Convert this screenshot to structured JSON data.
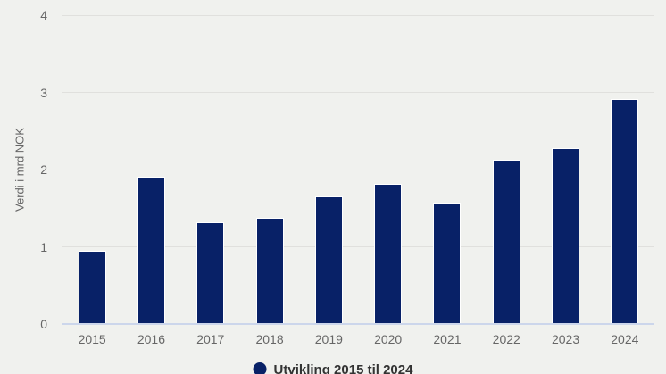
{
  "chart_data": {
    "type": "bar",
    "categories": [
      "2015",
      "2016",
      "2017",
      "2018",
      "2019",
      "2020",
      "2021",
      "2022",
      "2023",
      "2024"
    ],
    "values": [
      0.95,
      1.91,
      1.32,
      1.38,
      1.65,
      1.81,
      1.57,
      2.13,
      2.28,
      2.91
    ],
    "title": "",
    "xlabel": "",
    "ylabel": "Verdi i mrd NOK",
    "ylim": [
      0,
      4
    ],
    "yticks": [
      0,
      1,
      2,
      3,
      4
    ],
    "grid": true,
    "legend_position": "bottom-center",
    "series_name": "Utvikling 2015 til 2024"
  },
  "legend": {
    "label": "Utvikling 2015 til 2024"
  },
  "colors": {
    "background": "#f0f1ee",
    "bar": "#082167",
    "bar_border": "#ffffff",
    "gridline": "#e0e0dd",
    "x_axis_line": "#ccd6eb",
    "tick_text": "#666666",
    "legend_text": "#333333"
  }
}
